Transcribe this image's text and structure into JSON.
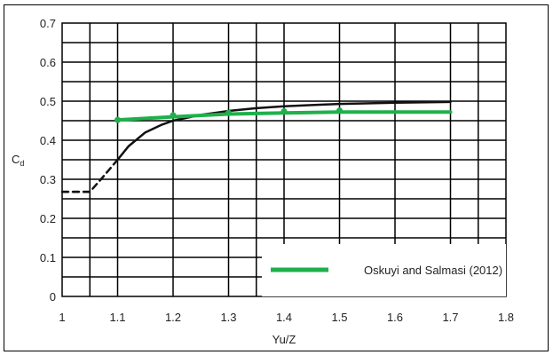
{
  "chart_data": {
    "type": "line",
    "title": "",
    "xlabel": "Yu/Z",
    "ylabel": "C",
    "ylabel_sub": "d",
    "xlim": [
      1,
      1.8
    ],
    "ylim": [
      0,
      0.7
    ],
    "x_ticks": [
      1,
      1.1,
      1.2,
      1.3,
      1.4,
      1.5,
      1.6,
      1.7,
      1.8
    ],
    "x_tick_labels": [
      "1",
      "1.1",
      "1.2",
      "1.3",
      "1.4",
      "1.5",
      "1.6",
      "1.7",
      "1.8"
    ],
    "y_ticks": [
      0,
      0.1,
      0.2,
      0.3,
      0.4,
      0.5,
      0.6,
      0.7
    ],
    "y_tick_labels": [
      "0",
      "0.1",
      "0.2",
      "0.3",
      "0.4",
      "0.5",
      "0.6",
      "0.7"
    ],
    "grid": true,
    "legend_position": "bottom-right",
    "series": [
      {
        "name": "",
        "color": "#111111",
        "style": "solid",
        "x": [
          1.1,
          1.12,
          1.15,
          1.18,
          1.2,
          1.25,
          1.3,
          1.35,
          1.4,
          1.45,
          1.5,
          1.6,
          1.7
        ],
        "y": [
          0.35,
          0.385,
          0.42,
          0.44,
          0.45,
          0.465,
          0.475,
          0.482,
          0.487,
          0.49,
          0.493,
          0.496,
          0.498
        ]
      },
      {
        "name": "",
        "color": "#111111",
        "style": "dashed",
        "x": [
          1.0,
          1.05,
          1.07,
          1.1
        ],
        "y": [
          0.268,
          0.268,
          0.3,
          0.35
        ]
      },
      {
        "name": "Oskuyi and Salmasi (2012)",
        "color": "#1fb04b",
        "style": "solid",
        "x": [
          1.1,
          1.2,
          1.3,
          1.4,
          1.5,
          1.7
        ],
        "y": [
          0.452,
          0.46,
          0.467,
          0.47,
          0.472,
          0.472
        ],
        "markers_x": [
          1.1,
          1.2,
          1.3,
          1.4,
          1.5
        ],
        "markers_y": [
          0.452,
          0.464,
          0.47,
          0.474,
          0.476
        ]
      }
    ]
  }
}
